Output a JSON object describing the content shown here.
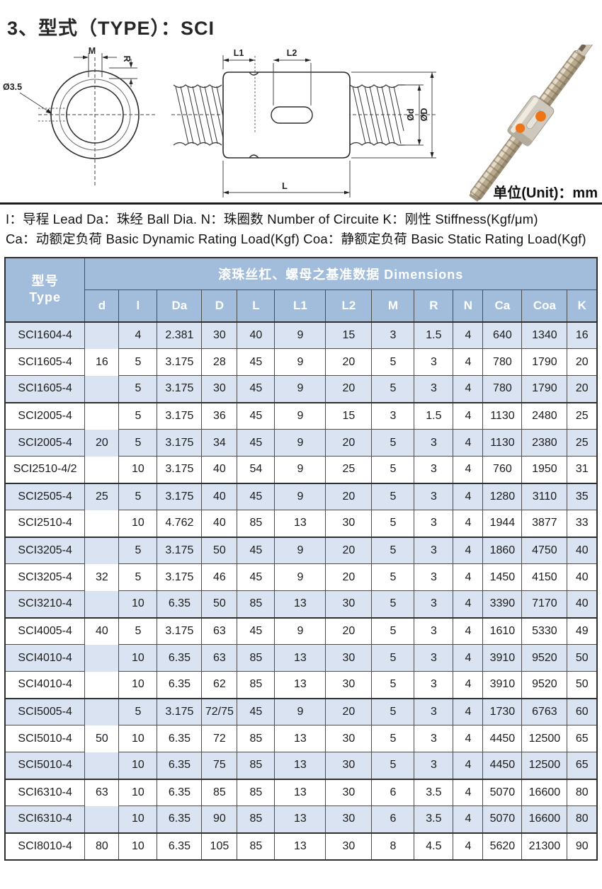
{
  "page": {
    "title": "3、型式（TYPE）：SCI",
    "unit_label": "单位(Unit)：mm",
    "legend_line1": "I：导程 Lead  Da：珠经 Ball Dia.  N：珠圈数 Number of Circuite  K：刚性 Stiffness(Kgf/μm)",
    "legend_line2": "Ca：动额定负荷 Basic Dynamic Rating Load(Kgf)  Coa：静额定负荷 Basic Static Rating Load(Kgf)"
  },
  "drawings": {
    "front_view": {
      "m_label": "M",
      "r_label": "R",
      "bore_label": "Ø3.5"
    },
    "section_view": {
      "l1_label": "L1",
      "l2_label": "L2",
      "l_label": "L",
      "od_screw_label": "Ød",
      "od_nut_label": "ØD"
    },
    "photo": {
      "accent_color": "#ee7418"
    }
  },
  "colors": {
    "header_blue": "#a2bddc",
    "stripe_blue": "#dae3f1",
    "border_dark": "#2e2e2e"
  },
  "table": {
    "header": {
      "type_label_cn": "型号",
      "type_label_en": "Type",
      "dimensions_label": "滚珠丝杠、螺母之基准数据  Dimensions",
      "columns": [
        "d",
        "l",
        "Da",
        "D",
        "L",
        "L1",
        "L2",
        "M",
        "R",
        "N",
        "Ca",
        "Coa",
        "K"
      ]
    },
    "group_starts": [
      0,
      3,
      6,
      8,
      11,
      14,
      17,
      19
    ],
    "rows": [
      {
        "type": "SCI1604-4",
        "d": "",
        "l": "4",
        "Da": "2.381",
        "D": "30",
        "L": "40",
        "L1": "9",
        "L2": "15",
        "M": "3",
        "R": "1.5",
        "N": "4",
        "Ca": "640",
        "Coa": "1340",
        "K": "16"
      },
      {
        "type": "SCI1605-4",
        "d": "16",
        "l": "5",
        "Da": "3.175",
        "D": "28",
        "L": "45",
        "L1": "9",
        "L2": "20",
        "M": "5",
        "R": "3",
        "N": "4",
        "Ca": "780",
        "Coa": "1790",
        "K": "20"
      },
      {
        "type": "SCI1605-4",
        "d": "",
        "l": "5",
        "Da": "3.175",
        "D": "30",
        "L": "45",
        "L1": "9",
        "L2": "20",
        "M": "5",
        "R": "3",
        "N": "4",
        "Ca": "780",
        "Coa": "1790",
        "K": "20"
      },
      {
        "type": "SCI2005-4",
        "d": "",
        "l": "5",
        "Da": "3.175",
        "D": "36",
        "L": "45",
        "L1": "9",
        "L2": "15",
        "M": "3",
        "R": "1.5",
        "N": "4",
        "Ca": "1130",
        "Coa": "2480",
        "K": "25"
      },
      {
        "type": "SCI2005-4",
        "d": "20",
        "l": "5",
        "Da": "3.175",
        "D": "34",
        "L": "45",
        "L1": "9",
        "L2": "20",
        "M": "5",
        "R": "3",
        "N": "4",
        "Ca": "1130",
        "Coa": "2380",
        "K": "25"
      },
      {
        "type": "SCI2510-4/2",
        "d": "",
        "l": "10",
        "Da": "3.175",
        "D": "40",
        "L": "54",
        "L1": "9",
        "L2": "25",
        "M": "5",
        "R": "3",
        "N": "4",
        "Ca": "760",
        "Coa": "1950",
        "K": "31"
      },
      {
        "type": "SCI2505-4",
        "d": "25",
        "l": "5",
        "Da": "3.175",
        "D": "40",
        "L": "45",
        "L1": "9",
        "L2": "20",
        "M": "5",
        "R": "3",
        "N": "4",
        "Ca": "1280",
        "Coa": "3110",
        "K": "35"
      },
      {
        "type": "SCI2510-4",
        "d": "",
        "l": "10",
        "Da": "4.762",
        "D": "40",
        "L": "85",
        "L1": "13",
        "L2": "30",
        "M": "5",
        "R": "3",
        "N": "4",
        "Ca": "1944",
        "Coa": "3877",
        "K": "33"
      },
      {
        "type": "SCI3205-4",
        "d": "",
        "l": "5",
        "Da": "3.175",
        "D": "50",
        "L": "45",
        "L1": "9",
        "L2": "20",
        "M": "5",
        "R": "3",
        "N": "4",
        "Ca": "1860",
        "Coa": "4750",
        "K": "40"
      },
      {
        "type": "SCI3205-4",
        "d": "32",
        "l": "5",
        "Da": "3.175",
        "D": "46",
        "L": "45",
        "L1": "9",
        "L2": "20",
        "M": "5",
        "R": "3",
        "N": "4",
        "Ca": "1450",
        "Coa": "4150",
        "K": "40"
      },
      {
        "type": "SCI3210-4",
        "d": "",
        "l": "10",
        "Da": "6.35",
        "D": "50",
        "L": "85",
        "L1": "13",
        "L2": "30",
        "M": "5",
        "R": "3",
        "N": "4",
        "Ca": "3390",
        "Coa": "7170",
        "K": "40"
      },
      {
        "type": "SCI4005-4",
        "d": "40",
        "l": "5",
        "Da": "3.175",
        "D": "63",
        "L": "45",
        "L1": "9",
        "L2": "20",
        "M": "5",
        "R": "3",
        "N": "4",
        "Ca": "1610",
        "Coa": "5330",
        "K": "49"
      },
      {
        "type": "SCI4010-4",
        "d": "",
        "l": "10",
        "Da": "6.35",
        "D": "63",
        "L": "85",
        "L1": "13",
        "L2": "30",
        "M": "5",
        "R": "3",
        "N": "4",
        "Ca": "3910",
        "Coa": "9520",
        "K": "50"
      },
      {
        "type": "SCI4010-4",
        "d": "",
        "l": "10",
        "Da": "6.35",
        "D": "62",
        "L": "85",
        "L1": "13",
        "L2": "30",
        "M": "5",
        "R": "3",
        "N": "4",
        "Ca": "3910",
        "Coa": "9520",
        "K": "50"
      },
      {
        "type": "SCI5005-4",
        "d": "",
        "l": "5",
        "Da": "3.175",
        "D": "72/75",
        "L": "45",
        "L1": "9",
        "L2": "20",
        "M": "5",
        "R": "3",
        "N": "4",
        "Ca": "1730",
        "Coa": "6763",
        "K": "60"
      },
      {
        "type": "SCI5010-4",
        "d": "50",
        "l": "10",
        "Da": "6.35",
        "D": "72",
        "L": "85",
        "L1": "13",
        "L2": "30",
        "M": "5",
        "R": "3",
        "N": "4",
        "Ca": "4450",
        "Coa": "12500",
        "K": "65"
      },
      {
        "type": "SCI5010-4",
        "d": "",
        "l": "10",
        "Da": "6.35",
        "D": "75",
        "L": "85",
        "L1": "13",
        "L2": "30",
        "M": "5",
        "R": "3",
        "N": "4",
        "Ca": "4450",
        "Coa": "12500",
        "K": "65"
      },
      {
        "type": "SCI6310-4",
        "d": "63",
        "l": "10",
        "Da": "6.35",
        "D": "85",
        "L": "85",
        "L1": "13",
        "L2": "30",
        "M": "6",
        "R": "3.5",
        "N": "4",
        "Ca": "5070",
        "Coa": "16600",
        "K": "80"
      },
      {
        "type": "SCI6310-4",
        "d": "",
        "l": "10",
        "Da": "6.35",
        "D": "90",
        "L": "85",
        "L1": "13",
        "L2": "30",
        "M": "6",
        "R": "3.5",
        "N": "4",
        "Ca": "5070",
        "Coa": "16600",
        "K": "80"
      },
      {
        "type": "SCI8010-4",
        "d": "80",
        "l": "10",
        "Da": "6.35",
        "D": "105",
        "L": "85",
        "L1": "13",
        "L2": "30",
        "M": "8",
        "R": "4.5",
        "N": "4",
        "Ca": "5620",
        "Coa": "21300",
        "K": "90"
      }
    ]
  }
}
